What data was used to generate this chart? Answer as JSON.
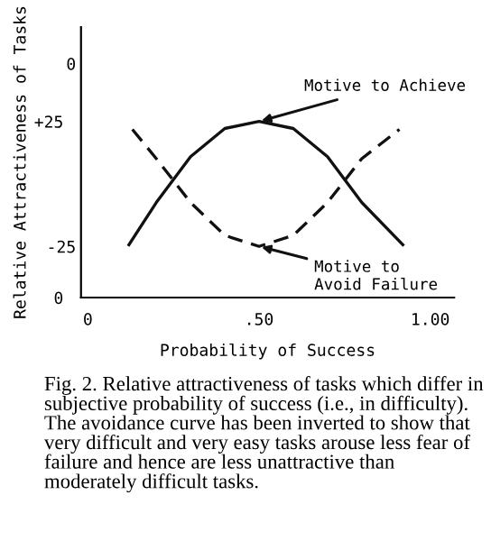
{
  "chart_data": {
    "type": "line",
    "xlabel": "Probability of Success",
    "ylabel": "Relative Attractiveness of Tasks",
    "x": [
      0.12,
      0.2,
      0.3,
      0.4,
      0.5,
      0.6,
      0.7,
      0.8,
      0.92
    ],
    "series": [
      {
        "name": "Motive to Achieve",
        "color": "#111111",
        "line_style": "solid",
        "values": [
          7.5,
          13.5,
          20,
          24,
          25,
          24,
          20,
          13.5,
          7.5
        ]
      },
      {
        "name": "Motive to Avoid Failure",
        "color": "#111111",
        "line_style": "dashed",
        "axis": "y2",
        "x": [
          0.13,
          0.2,
          0.3,
          0.4,
          0.5,
          0.6,
          0.7,
          0.8,
          0.91
        ],
        "values": [
          -9,
          -13,
          -19,
          -23.5,
          -25,
          -23.5,
          -19,
          -13,
          -9
        ]
      }
    ],
    "xlim": [
      -0.02,
      1.07
    ],
    "xticks": [
      0,
      {
        "value": 0.5,
        "label": ".50"
      },
      {
        "value": 1,
        "label": "1.00"
      }
    ],
    "ylim": [
      0,
      38.4
    ],
    "yticks": [
      0,
      {
        "value": 25,
        "label": "+25"
      }
    ],
    "y2lim": [
      -32,
      5
    ],
    "y2ticks": [
      0,
      -25
    ],
    "legend": false,
    "grid": false,
    "annotations": [
      "Fig. 2. Relative attractiveness of tasks which differ in subjective probability of success (i.e., in difficulty). The avoidance curve has been inverted to show that very difficult and very easy tasks arouse less fear of failure and hence are less unattractive than moderately difficult tasks."
    ]
  }
}
